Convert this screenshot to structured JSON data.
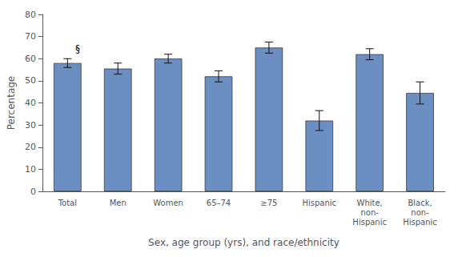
{
  "chart_data": {
    "type": "bar",
    "categories": [
      "Total",
      "Men",
      "Women",
      "65–74",
      "≥75",
      "Hispanic",
      "White,\nnon-\nHispanic",
      "Black,\nnon-\nHispanic"
    ],
    "values": [
      58.0,
      55.5,
      60.0,
      52.0,
      65.0,
      32.0,
      62.0,
      44.5
    ],
    "errors": [
      2.0,
      2.5,
      2.0,
      2.5,
      2.5,
      4.5,
      2.5,
      5.0
    ],
    "color": "#6b8fc2",
    "xlabel": "Sex, age group (yrs), and race/ethnicity",
    "ylabel": "Percentage",
    "ylim": [
      0,
      80
    ],
    "yticks": [
      0,
      10,
      20,
      30,
      40,
      50,
      60,
      70,
      80
    ],
    "grid": false,
    "annotations": [
      {
        "text": "§",
        "category": "Total"
      }
    ]
  }
}
